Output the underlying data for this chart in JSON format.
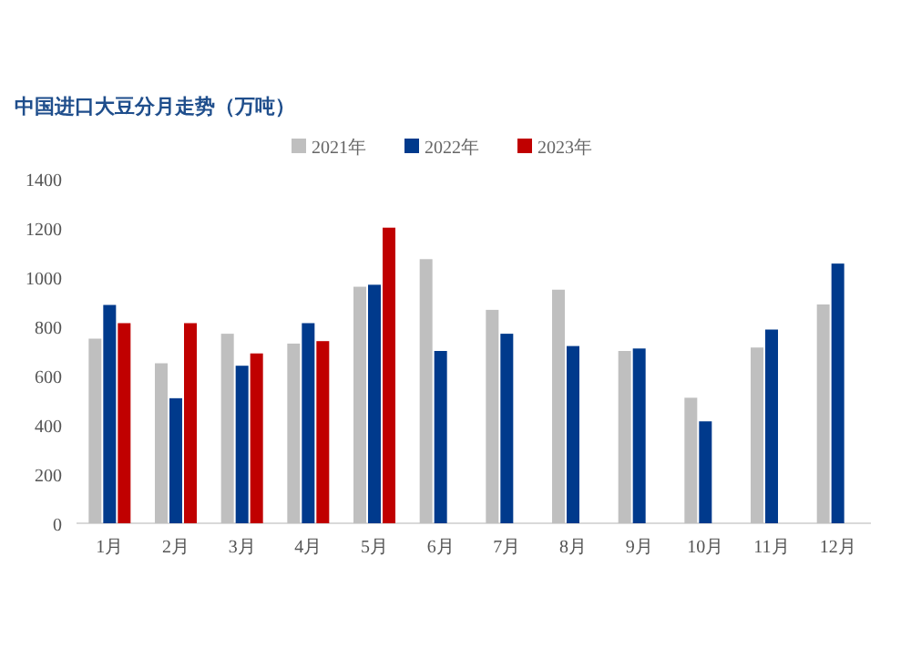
{
  "chart_data": {
    "type": "bar",
    "title": "中国进口大豆分月走势（万吨）",
    "categories": [
      "1月",
      "2月",
      "3月",
      "4月",
      "5月",
      "6月",
      "7月",
      "8月",
      "9月",
      "10月",
      "11月",
      "12月"
    ],
    "series": [
      {
        "name": "2021年",
        "color": "#bfbfbf",
        "values": [
          750,
          650,
          770,
          730,
          961,
          1073,
          867,
          949,
          700,
          510,
          714,
          889
        ]
      },
      {
        "name": "2022年",
        "color": "#003a8c",
        "values": [
          887,
          508,
          640,
          813,
          969,
          700,
          770,
          720,
          710,
          414,
          787,
          1055
        ]
      },
      {
        "name": "2023年",
        "color": "#c00000",
        "values": [
          813,
          813,
          690,
          740,
          1201,
          null,
          null,
          null,
          null,
          null,
          null,
          null
        ]
      }
    ],
    "ylim": [
      0,
      1400
    ],
    "yticks": [
      0,
      200,
      400,
      600,
      800,
      1000,
      1200,
      1400
    ],
    "grid": false,
    "legend": "top"
  }
}
